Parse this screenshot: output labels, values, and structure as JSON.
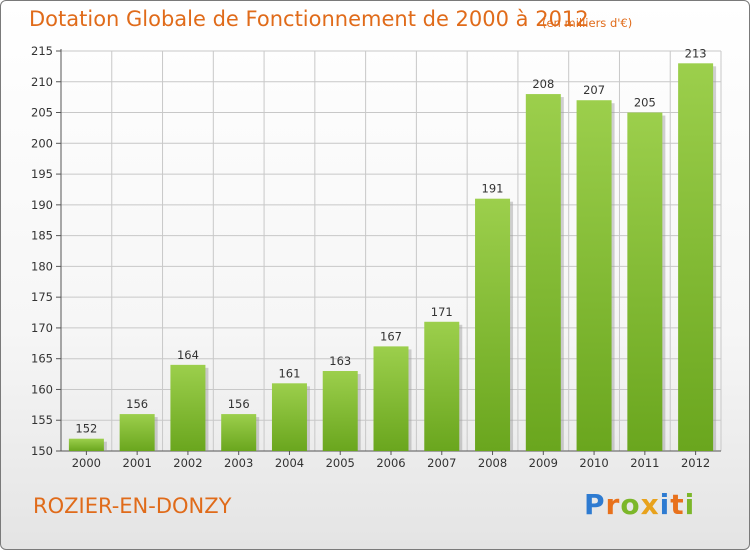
{
  "header": {
    "title": "Dotation Globale de Fonctionnement de 2000 à 2012",
    "subtitle": "(en milliers d'€)"
  },
  "footer": {
    "place": "ROZIER-EN-DONZY",
    "logo": "Proxiti",
    "logo_colors": [
      "#2e7bd1",
      "#e8711c",
      "#7cb72a",
      "#e8a21c",
      "#2e7bd1",
      "#e8711c",
      "#7cb72a"
    ]
  },
  "chart_data": {
    "type": "bar",
    "categories": [
      "2000",
      "2001",
      "2002",
      "2003",
      "2004",
      "2005",
      "2006",
      "2007",
      "2008",
      "2009",
      "2010",
      "2011",
      "2012"
    ],
    "values": [
      152,
      156,
      164,
      156,
      161,
      163,
      167,
      171,
      191,
      208,
      207,
      205,
      213
    ],
    "ylim": [
      150,
      215
    ],
    "yticks": [
      150,
      155,
      160,
      165,
      170,
      175,
      180,
      185,
      190,
      195,
      200,
      205,
      210,
      215
    ],
    "grid": true,
    "bar_color_light": "#9ccf4c",
    "bar_color_dark": "#6aa61e"
  }
}
